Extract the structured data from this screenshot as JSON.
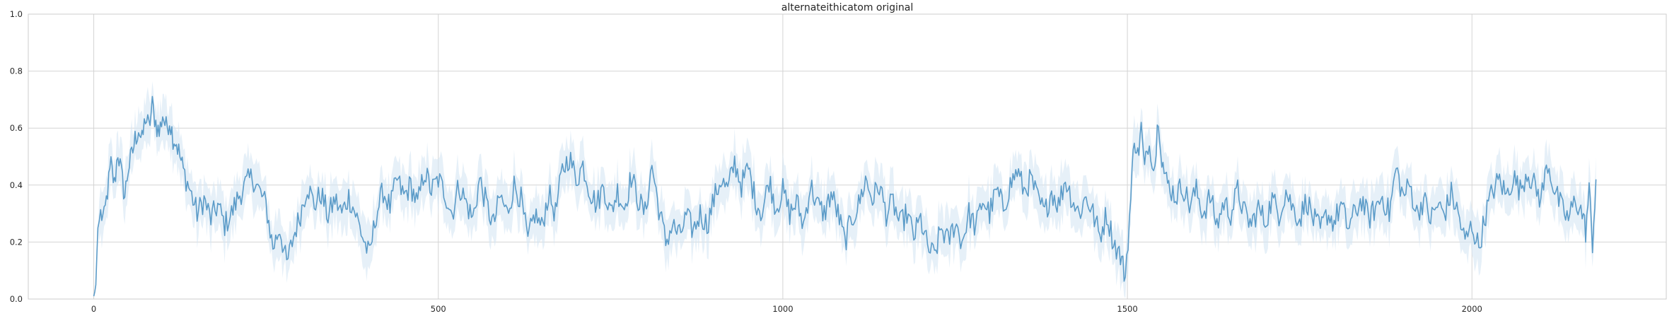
{
  "chart_data": {
    "type": "line",
    "title": "alternateithicatom original",
    "xlabel": "",
    "ylabel": "",
    "xlim": [
      -95,
      2282
    ],
    "ylim": [
      0,
      1.0
    ],
    "x_ticks": [
      0,
      500,
      1000,
      1500,
      2000
    ],
    "y_ticks": [
      0.0,
      0.2,
      0.4,
      0.6,
      0.8,
      1.0
    ],
    "x_tick_labels": [
      "0",
      "500",
      "1000",
      "1500",
      "2000"
    ],
    "y_tick_labels": [
      "0.0",
      "0.2",
      "0.4",
      "0.6",
      "0.8",
      "1.0"
    ],
    "grid": true,
    "legend": "none",
    "line_color": "#5b9bc8",
    "band_color": "#d6e6f4",
    "x_end": 2180,
    "series": [
      {
        "name": "",
        "points": [
          [
            0,
            0.0
          ],
          [
            3,
            0.05
          ],
          [
            6,
            0.25
          ],
          [
            10,
            0.3
          ],
          [
            15,
            0.28
          ],
          [
            20,
            0.38
          ],
          [
            25,
            0.47
          ],
          [
            30,
            0.4
          ],
          [
            35,
            0.52
          ],
          [
            40,
            0.44
          ],
          [
            45,
            0.36
          ],
          [
            50,
            0.46
          ],
          [
            55,
            0.5
          ],
          [
            60,
            0.56
          ],
          [
            65,
            0.6
          ],
          [
            70,
            0.55
          ],
          [
            75,
            0.64
          ],
          [
            80,
            0.6
          ],
          [
            85,
            0.68
          ],
          [
            90,
            0.62
          ],
          [
            95,
            0.58
          ],
          [
            100,
            0.65
          ],
          [
            105,
            0.6
          ],
          [
            110,
            0.63
          ],
          [
            115,
            0.57
          ],
          [
            120,
            0.55
          ],
          [
            125,
            0.5
          ],
          [
            130,
            0.45
          ],
          [
            140,
            0.38
          ],
          [
            150,
            0.3
          ],
          [
            160,
            0.35
          ],
          [
            170,
            0.28
          ],
          [
            180,
            0.33
          ],
          [
            190,
            0.26
          ],
          [
            200,
            0.3
          ],
          [
            210,
            0.36
          ],
          [
            220,
            0.4
          ],
          [
            230,
            0.43
          ],
          [
            240,
            0.38
          ],
          [
            250,
            0.33
          ],
          [
            260,
            0.18
          ],
          [
            270,
            0.25
          ],
          [
            280,
            0.12
          ],
          [
            290,
            0.22
          ],
          [
            300,
            0.3
          ],
          [
            310,
            0.4
          ],
          [
            320,
            0.33
          ],
          [
            330,
            0.37
          ],
          [
            340,
            0.29
          ],
          [
            350,
            0.35
          ],
          [
            360,
            0.3
          ],
          [
            370,
            0.36
          ],
          [
            380,
            0.3
          ],
          [
            390,
            0.22
          ],
          [
            400,
            0.15
          ],
          [
            410,
            0.3
          ],
          [
            420,
            0.38
          ],
          [
            430,
            0.32
          ],
          [
            440,
            0.42
          ],
          [
            450,
            0.36
          ],
          [
            460,
            0.4
          ],
          [
            470,
            0.33
          ],
          [
            480,
            0.45
          ],
          [
            490,
            0.38
          ],
          [
            500,
            0.42
          ],
          [
            510,
            0.37
          ],
          [
            520,
            0.3
          ],
          [
            530,
            0.4
          ],
          [
            540,
            0.34
          ],
          [
            550,
            0.28
          ],
          [
            560,
            0.42
          ],
          [
            570,
            0.33
          ],
          [
            580,
            0.26
          ],
          [
            590,
            0.36
          ],
          [
            600,
            0.3
          ],
          [
            610,
            0.4
          ],
          [
            620,
            0.35
          ],
          [
            630,
            0.2
          ],
          [
            640,
            0.3
          ],
          [
            650,
            0.25
          ],
          [
            660,
            0.37
          ],
          [
            670,
            0.3
          ],
          [
            680,
            0.45
          ],
          [
            690,
            0.5
          ],
          [
            700,
            0.42
          ],
          [
            710,
            0.47
          ],
          [
            720,
            0.38
          ],
          [
            730,
            0.33
          ],
          [
            740,
            0.4
          ],
          [
            750,
            0.3
          ],
          [
            760,
            0.38
          ],
          [
            770,
            0.32
          ],
          [
            780,
            0.43
          ],
          [
            790,
            0.35
          ],
          [
            800,
            0.3
          ],
          [
            810,
            0.47
          ],
          [
            820,
            0.32
          ],
          [
            830,
            0.2
          ],
          [
            840,
            0.26
          ],
          [
            850,
            0.22
          ],
          [
            860,
            0.29
          ],
          [
            870,
            0.24
          ],
          [
            880,
            0.3
          ],
          [
            890,
            0.26
          ],
          [
            900,
            0.35
          ],
          [
            910,
            0.42
          ],
          [
            920,
            0.38
          ],
          [
            930,
            0.48
          ],
          [
            940,
            0.4
          ],
          [
            950,
            0.46
          ],
          [
            960,
            0.35
          ],
          [
            970,
            0.3
          ],
          [
            980,
            0.42
          ],
          [
            990,
            0.32
          ],
          [
            1000,
            0.38
          ],
          [
            1010,
            0.3
          ],
          [
            1020,
            0.34
          ],
          [
            1030,
            0.26
          ],
          [
            1040,
            0.4
          ],
          [
            1050,
            0.33
          ],
          [
            1060,
            0.3
          ],
          [
            1070,
            0.37
          ],
          [
            1080,
            0.3
          ],
          [
            1090,
            0.2
          ],
          [
            1100,
            0.28
          ],
          [
            1110,
            0.33
          ],
          [
            1120,
            0.42
          ],
          [
            1130,
            0.35
          ],
          [
            1140,
            0.4
          ],
          [
            1150,
            0.3
          ],
          [
            1160,
            0.34
          ],
          [
            1170,
            0.26
          ],
          [
            1180,
            0.3
          ],
          [
            1190,
            0.22
          ],
          [
            1200,
            0.28
          ],
          [
            1210,
            0.18
          ],
          [
            1220,
            0.15
          ],
          [
            1230,
            0.25
          ],
          [
            1240,
            0.2
          ],
          [
            1250,
            0.27
          ],
          [
            1260,
            0.2
          ],
          [
            1270,
            0.3
          ],
          [
            1280,
            0.25
          ],
          [
            1290,
            0.35
          ],
          [
            1300,
            0.3
          ],
          [
            1310,
            0.38
          ],
          [
            1320,
            0.32
          ],
          [
            1330,
            0.4
          ],
          [
            1340,
            0.45
          ],
          [
            1350,
            0.38
          ],
          [
            1360,
            0.42
          ],
          [
            1370,
            0.35
          ],
          [
            1380,
            0.3
          ],
          [
            1390,
            0.38
          ],
          [
            1400,
            0.33
          ],
          [
            1410,
            0.42
          ],
          [
            1420,
            0.35
          ],
          [
            1430,
            0.3
          ],
          [
            1440,
            0.36
          ],
          [
            1450,
            0.3
          ],
          [
            1460,
            0.22
          ],
          [
            1470,
            0.3
          ],
          [
            1480,
            0.2
          ],
          [
            1490,
            0.15
          ],
          [
            1497,
            0.08
          ],
          [
            1505,
            0.35
          ],
          [
            1510,
            0.58
          ],
          [
            1515,
            0.5
          ],
          [
            1520,
            0.6
          ],
          [
            1525,
            0.45
          ],
          [
            1530,
            0.55
          ],
          [
            1540,
            0.47
          ],
          [
            1545,
            0.65
          ],
          [
            1550,
            0.5
          ],
          [
            1555,
            0.42
          ],
          [
            1560,
            0.4
          ],
          [
            1570,
            0.36
          ],
          [
            1580,
            0.4
          ],
          [
            1590,
            0.33
          ],
          [
            1600,
            0.38
          ],
          [
            1610,
            0.3
          ],
          [
            1620,
            0.36
          ],
          [
            1630,
            0.26
          ],
          [
            1640,
            0.34
          ],
          [
            1650,
            0.3
          ],
          [
            1660,
            0.38
          ],
          [
            1670,
            0.3
          ],
          [
            1680,
            0.26
          ],
          [
            1690,
            0.32
          ],
          [
            1700,
            0.27
          ],
          [
            1710,
            0.35
          ],
          [
            1720,
            0.3
          ],
          [
            1730,
            0.38
          ],
          [
            1740,
            0.32
          ],
          [
            1750,
            0.28
          ],
          [
            1760,
            0.35
          ],
          [
            1770,
            0.28
          ],
          [
            1780,
            0.24
          ],
          [
            1790,
            0.3
          ],
          [
            1800,
            0.27
          ],
          [
            1810,
            0.33
          ],
          [
            1820,
            0.25
          ],
          [
            1830,
            0.3
          ],
          [
            1840,
            0.35
          ],
          [
            1850,
            0.28
          ],
          [
            1860,
            0.32
          ],
          [
            1870,
            0.36
          ],
          [
            1880,
            0.3
          ],
          [
            1890,
            0.46
          ],
          [
            1900,
            0.36
          ],
          [
            1910,
            0.4
          ],
          [
            1920,
            0.3
          ],
          [
            1930,
            0.35
          ],
          [
            1940,
            0.28
          ],
          [
            1950,
            0.33
          ],
          [
            1960,
            0.3
          ],
          [
            1970,
            0.37
          ],
          [
            1980,
            0.3
          ],
          [
            1990,
            0.2
          ],
          [
            2000,
            0.26
          ],
          [
            2010,
            0.18
          ],
          [
            2020,
            0.3
          ],
          [
            2030,
            0.38
          ],
          [
            2040,
            0.42
          ],
          [
            2050,
            0.36
          ],
          [
            2060,
            0.43
          ],
          [
            2070,
            0.38
          ],
          [
            2080,
            0.45
          ],
          [
            2090,
            0.4
          ],
          [
            2100,
            0.35
          ],
          [
            2110,
            0.48
          ],
          [
            2120,
            0.38
          ],
          [
            2130,
            0.32
          ],
          [
            2140,
            0.28
          ],
          [
            2150,
            0.35
          ],
          [
            2160,
            0.3
          ],
          [
            2165,
            0.24
          ],
          [
            2170,
            0.38
          ],
          [
            2175,
            0.2
          ],
          [
            2180,
            0.42
          ]
        ]
      }
    ]
  }
}
